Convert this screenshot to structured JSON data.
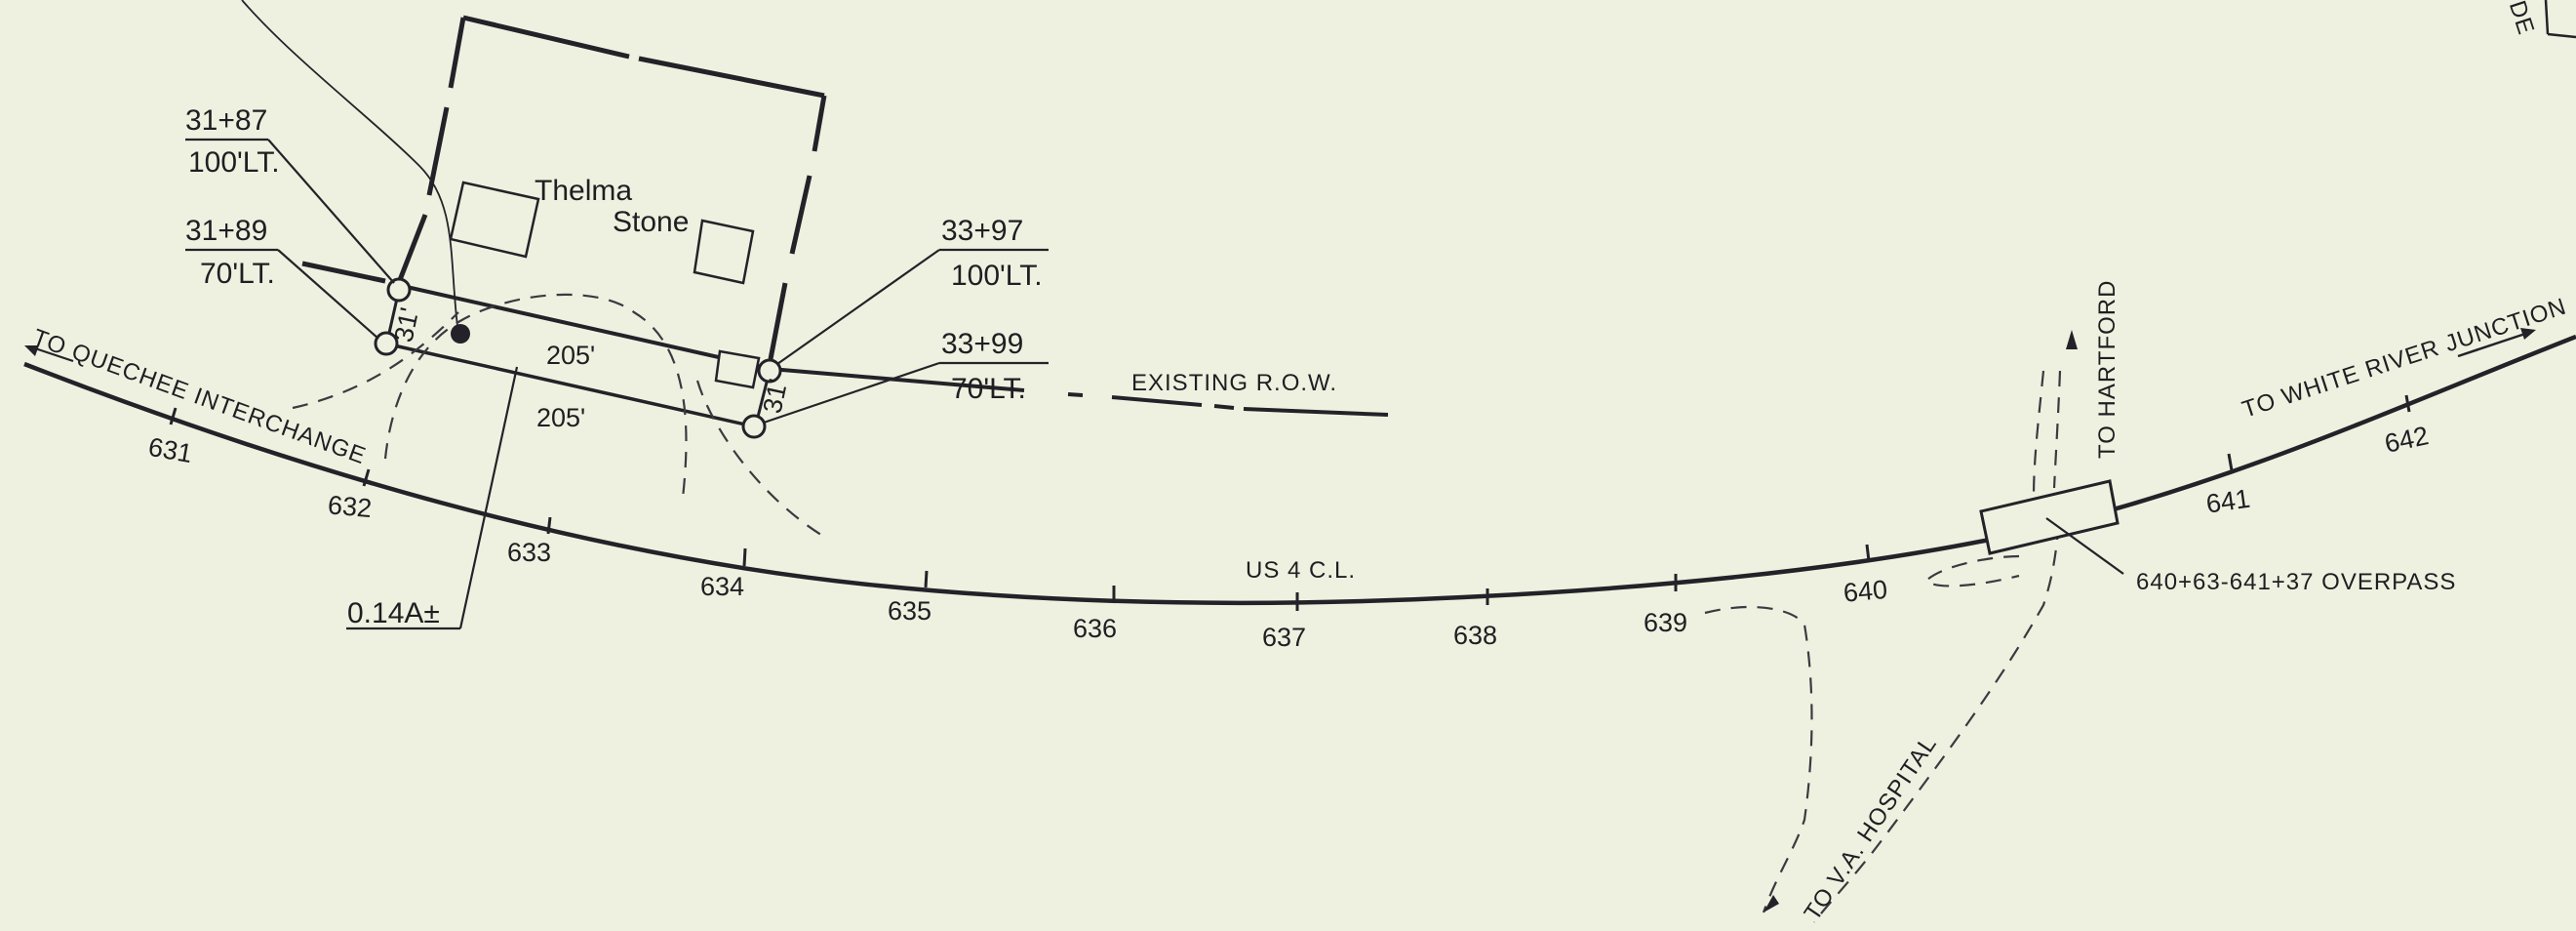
{
  "stations": {
    "s631": "631",
    "s632": "632",
    "s633": "633",
    "s634": "634",
    "s635": "635",
    "s636": "636",
    "s637": "637",
    "s638": "638",
    "s639": "639",
    "s640": "640",
    "s641": "641",
    "s642": "642"
  },
  "labels": {
    "to_quechee": "TO QUECHEE INTERCHANGE",
    "to_white_river": "TO WHITE RIVER JUNCTION",
    "to_hartford": "TO HARTFORD",
    "to_va_hospital": "TO V.A. HOSPITAL",
    "us4_cl": "US 4 C.L.",
    "existing_row": "EXISTING R.O.W.",
    "overpass": "640+63-641+37 OVERPASS",
    "owner_first": "Thelma",
    "owner_last": "Stone",
    "area": "0.14A±",
    "edge_fragment": "DE"
  },
  "points": {
    "p1_station": "31+87",
    "p1_offset": "100'LT.",
    "p2_station": "31+89",
    "p2_offset": "70'LT.",
    "p3_station": "33+97",
    "p3_offset": "100'LT.",
    "p4_station": "33+99",
    "p4_offset": "70'LT."
  },
  "dimensions": {
    "length_top": "205'",
    "length_bottom": "205'",
    "width_left": "31'",
    "width_right": "31'"
  }
}
